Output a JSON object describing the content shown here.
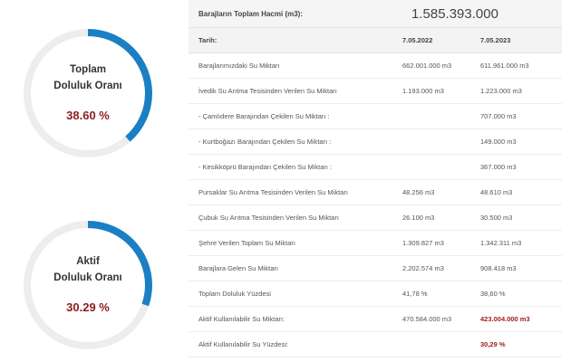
{
  "colors": {
    "arc": "#1a7fc3",
    "track": "#ededed",
    "value": "#8b1d1d"
  },
  "gauges": [
    {
      "label_line1": "Toplam",
      "label_line2": "Doluluk Oranı",
      "value_text": "38.60 %",
      "fraction": 0.386
    },
    {
      "label_line1": "Aktif",
      "label_line2": "Doluluk Oranı",
      "value_text": "30.29 %",
      "fraction": 0.3029
    }
  ],
  "table": {
    "total_label": "Barajların Toplam Hacmi (m3):",
    "total_value": "1.585.393.000",
    "date_label": "Tarih:",
    "date_a": "7.05.2022",
    "date_b": "7.05.2023",
    "rows": [
      {
        "label": "Barajlarımızdaki Su Miktarı",
        "a": "662.001.000 m3",
        "b": "611.961.000 m3"
      },
      {
        "label": "İvedik Su Arıtma Tesisinden Verilen Su Miktarı",
        "a": "1.193.000 m3",
        "b": "1.223.000 m3"
      },
      {
        "label": " - Çamlıdere Barajından Çekilen Su Miktarı :",
        "a": "",
        "b": "707.000 m3"
      },
      {
        "label": " - Kurtboğazı Barajından Çekilen Su Miktarı :",
        "a": "",
        "b": "149.000 m3"
      },
      {
        "label": " - Kesikköprü Barajından Çekilen Su Miktarı :",
        "a": "",
        "b": "367.000 m3"
      },
      {
        "label": "Pursaklar Su Arıtma Tesisinden Verilen Su Miktarı",
        "a": "48.256 m3",
        "b": "48.610 m3"
      },
      {
        "label": "Çubuk Su Arıtma Tesisinden Verilen Su Miktarı",
        "a": "26.100 m3",
        "b": "30.500 m3"
      },
      {
        "label": "Şehre Verilen Toplam Su Miktarı",
        "a": "1.309.827 m3",
        "b": "1.342.311 m3"
      },
      {
        "label": "Barajlara Gelen Su Miktarı",
        "a": "2.202.574 m3",
        "b": "908.418 m3"
      },
      {
        "label": "Toplam Doluluk Yüzdesi",
        "a": "41,78 %",
        "b": "38,60 %"
      },
      {
        "label": "Aktif Kullanılabilir Su Miktarı:",
        "a": "470.584.000 m3",
        "b": "423.004.000 m3",
        "b_highlight": true
      },
      {
        "label": "Aktif Kullanılabilir Su Yüzdesi:",
        "a": "",
        "b": "30,29 %",
        "b_highlight": true
      }
    ]
  }
}
